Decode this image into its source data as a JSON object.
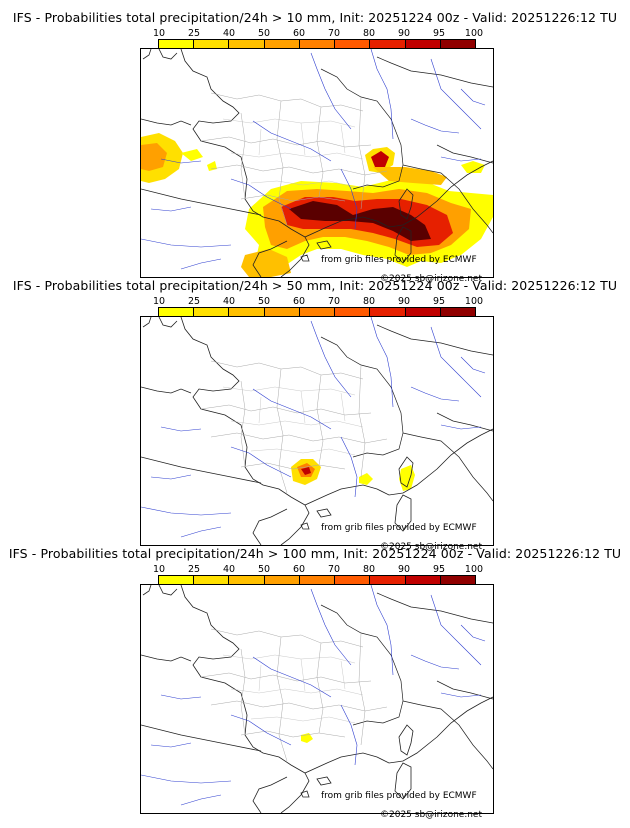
{
  "legend": {
    "ticks": [
      "10",
      "25",
      "40",
      "50",
      "60",
      "70",
      "80",
      "90",
      "95",
      "100"
    ],
    "colors": [
      "#ffff00",
      "#ffe000",
      "#ffc000",
      "#ffa000",
      "#ff8000",
      "#ff5a00",
      "#e62000",
      "#c00000",
      "#900000",
      "#5a0000"
    ]
  },
  "credits": {
    "grib": "from grib files provided by ECMWF",
    "copyright": "©2025 sb@irizone.net"
  },
  "panels": [
    {
      "title": "IFS - Probabilities total precipitation/24h > 10 mm, Init: 20251224 00z - Valid: 20251226:12 TU",
      "threshold": "10 mm"
    },
    {
      "title": "IFS - Probabilities total precipitation/24h > 50 mm, Init: 20251224 00z - Valid: 20251226:12 TU",
      "threshold": "50 mm"
    },
    {
      "title": "IFS - Probabilities total precipitation/24h > 100 mm, Init: 20251224 00z - Valid: 20251226:12 TU",
      "threshold": "100 mm"
    }
  ]
}
